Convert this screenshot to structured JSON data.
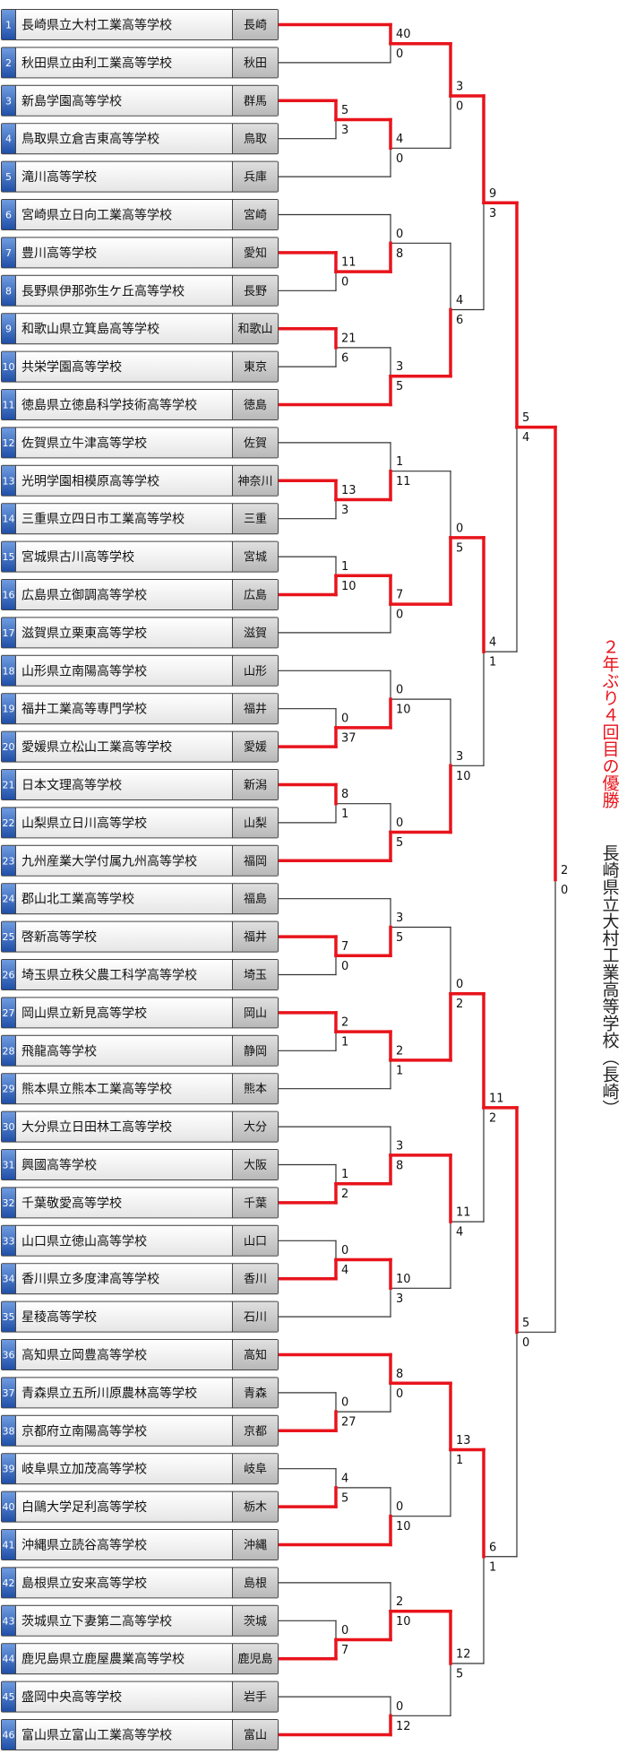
{
  "teams": [
    {
      "no": 1,
      "name": "長崎県立大村工業高等学校",
      "pref": "長崎"
    },
    {
      "no": 2,
      "name": "秋田県立由利工業高等学校",
      "pref": "秋田"
    },
    {
      "no": 3,
      "name": "新島学園高等学校",
      "pref": "群馬"
    },
    {
      "no": 4,
      "name": "鳥取県立倉吉東高等学校",
      "pref": "鳥取"
    },
    {
      "no": 5,
      "name": "滝川高等学校",
      "pref": "兵庫"
    },
    {
      "no": 6,
      "name": "宮崎県立日向工業高等学校",
      "pref": "宮崎"
    },
    {
      "no": 7,
      "name": "豊川高等学校",
      "pref": "愛知"
    },
    {
      "no": 8,
      "name": "長野県伊那弥生ケ丘高等学校",
      "pref": "長野"
    },
    {
      "no": 9,
      "name": "和歌山県立箕島高等学校",
      "pref": "和歌山"
    },
    {
      "no": 10,
      "name": "共栄学園高等学校",
      "pref": "東京"
    },
    {
      "no": 11,
      "name": "徳島県立徳島科学技術高等学校",
      "pref": "徳島"
    },
    {
      "no": 12,
      "name": "佐賀県立牛津高等学校",
      "pref": "佐賀"
    },
    {
      "no": 13,
      "name": "光明学園相模原高等学校",
      "pref": "神奈川"
    },
    {
      "no": 14,
      "name": "三重県立四日市工業高等学校",
      "pref": "三重"
    },
    {
      "no": 15,
      "name": "宮城県古川高等学校",
      "pref": "宮城"
    },
    {
      "no": 16,
      "name": "広島県立御調高等学校",
      "pref": "広島"
    },
    {
      "no": 17,
      "name": "滋賀県立栗東高等学校",
      "pref": "滋賀"
    },
    {
      "no": 18,
      "name": "山形県立南陽高等学校",
      "pref": "山形"
    },
    {
      "no": 19,
      "name": "福井工業高等専門学校",
      "pref": "福井"
    },
    {
      "no": 20,
      "name": "愛媛県立松山工業高等学校",
      "pref": "愛媛"
    },
    {
      "no": 21,
      "name": "日本文理高等学校",
      "pref": "新潟"
    },
    {
      "no": 22,
      "name": "山梨県立日川高等学校",
      "pref": "山梨"
    },
    {
      "no": 23,
      "name": "九州産業大学付属九州高等学校",
      "pref": "福岡"
    },
    {
      "no": 24,
      "name": "郡山北工業高等学校",
      "pref": "福島"
    },
    {
      "no": 25,
      "name": "啓新高等学校",
      "pref": "福井"
    },
    {
      "no": 26,
      "name": "埼玉県立秩父農工科学高等学校",
      "pref": "埼玉"
    },
    {
      "no": 27,
      "name": "岡山県立新見高等学校",
      "pref": "岡山"
    },
    {
      "no": 28,
      "name": "飛龍高等学校",
      "pref": "静岡"
    },
    {
      "no": 29,
      "name": "熊本県立熊本工業高等学校",
      "pref": "熊本"
    },
    {
      "no": 30,
      "name": "大分県立日田林工高等学校",
      "pref": "大分"
    },
    {
      "no": 31,
      "name": "興國高等学校",
      "pref": "大阪"
    },
    {
      "no": 32,
      "name": "千葉敬愛高等学校",
      "pref": "千葉"
    },
    {
      "no": 33,
      "name": "山口県立徳山高等学校",
      "pref": "山口"
    },
    {
      "no": 34,
      "name": "香川県立多度津高等学校",
      "pref": "香川"
    },
    {
      "no": 35,
      "name": "星稜高等学校",
      "pref": "石川"
    },
    {
      "no": 36,
      "name": "高知県立岡豊高等学校",
      "pref": "高知"
    },
    {
      "no": 37,
      "name": "青森県立五所川原農林高等学校",
      "pref": "青森"
    },
    {
      "no": 38,
      "name": "京都府立南陽高等学校",
      "pref": "京都"
    },
    {
      "no": 39,
      "name": "岐阜県立加茂高等学校",
      "pref": "岐阜"
    },
    {
      "no": 40,
      "name": "白鷗大学足利高等学校",
      "pref": "栃木"
    },
    {
      "no": 41,
      "name": "沖縄県立読谷高等学校",
      "pref": "沖縄"
    },
    {
      "no": 42,
      "name": "島根県立安来高等学校",
      "pref": "島根"
    },
    {
      "no": 43,
      "name": "茨城県立下妻第二高等学校",
      "pref": "茨城"
    },
    {
      "no": 44,
      "name": "鹿児島県立鹿屋農業高等学校",
      "pref": "鹿児島"
    },
    {
      "no": 45,
      "name": "盛岡中央高等学校",
      "pref": "岩手"
    },
    {
      "no": 46,
      "name": "富山県立富山工業高等学校",
      "pref": "富山"
    }
  ],
  "matches": [
    [
      40,
      0
    ],
    [
      5,
      3
    ],
    [
      4,
      0
    ],
    [
      3,
      0
    ],
    [
      11,
      0
    ],
    [
      0,
      8
    ],
    [
      21,
      6
    ],
    [
      3,
      5
    ],
    [
      4,
      6
    ],
    [
      9,
      3
    ],
    [
      13,
      3
    ],
    [
      1,
      11
    ],
    [
      1,
      10
    ],
    [
      7,
      0
    ],
    [
      0,
      5
    ],
    [
      0,
      37
    ],
    [
      0,
      10
    ],
    [
      8,
      1
    ],
    [
      0,
      5
    ],
    [
      3,
      10
    ],
    [
      4,
      1
    ],
    [
      5,
      4
    ],
    [
      7,
      0
    ],
    [
      3,
      5
    ],
    [
      2,
      1
    ],
    [
      2,
      1
    ],
    [
      0,
      2
    ],
    [
      1,
      2
    ],
    [
      3,
      8
    ],
    [
      0,
      4
    ],
    [
      10,
      3
    ],
    [
      11,
      4
    ],
    [
      11,
      2
    ],
    [
      0,
      27
    ],
    [
      8,
      0
    ],
    [
      4,
      5
    ],
    [
      0,
      10
    ],
    [
      13,
      1
    ],
    [
      0,
      7
    ],
    [
      2,
      10
    ],
    [
      0,
      12
    ],
    [
      12,
      5
    ],
    [
      6,
      1
    ],
    [
      5,
      0
    ],
    [
      2,
      0
    ]
  ],
  "champion": {
    "headline": "２年ぶり４回目の優勝",
    "team": "長崎県立大村工業高等学校（長崎）"
  }
}
